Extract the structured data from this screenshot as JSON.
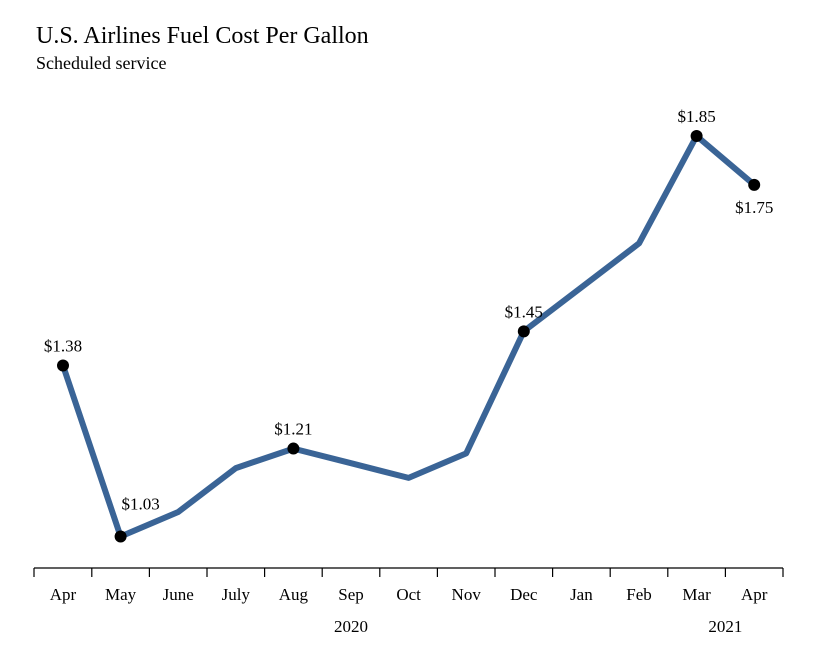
{
  "chart_data": {
    "type": "line",
    "title": "U.S. Airlines Fuel Cost Per Gallon",
    "subtitle": "Scheduled service",
    "categories": [
      "Apr",
      "May",
      "June",
      "July",
      "Aug",
      "Sep",
      "Oct",
      "Nov",
      "Dec",
      "Jan",
      "Feb",
      "Mar",
      "Apr"
    ],
    "year_labels": [
      {
        "label": "2020",
        "category_index": 5
      },
      {
        "label": "2021",
        "category_index": 11.5
      }
    ],
    "series": [
      {
        "values": [
          1.38,
          1.03,
          1.08,
          1.17,
          1.21,
          1.18,
          1.15,
          1.2,
          1.45,
          1.54,
          1.63,
          1.85,
          1.75
        ],
        "color": "#3a6496"
      }
    ],
    "data_labels": [
      {
        "index": 0,
        "text": "$1.38",
        "position": "above"
      },
      {
        "index": 1,
        "text": "$1.03",
        "position": "above-right"
      },
      {
        "index": 4,
        "text": "$1.21",
        "position": "above"
      },
      {
        "index": 8,
        "text": "$1.45",
        "position": "above"
      },
      {
        "index": 11,
        "text": "$1.85",
        "position": "above"
      },
      {
        "index": 12,
        "text": "$1.75",
        "position": "below"
      }
    ],
    "marker_color": "#000000",
    "ylim": [
      0.99,
      1.85
    ],
    "grid": false,
    "xlabel": "",
    "ylabel": ""
  }
}
